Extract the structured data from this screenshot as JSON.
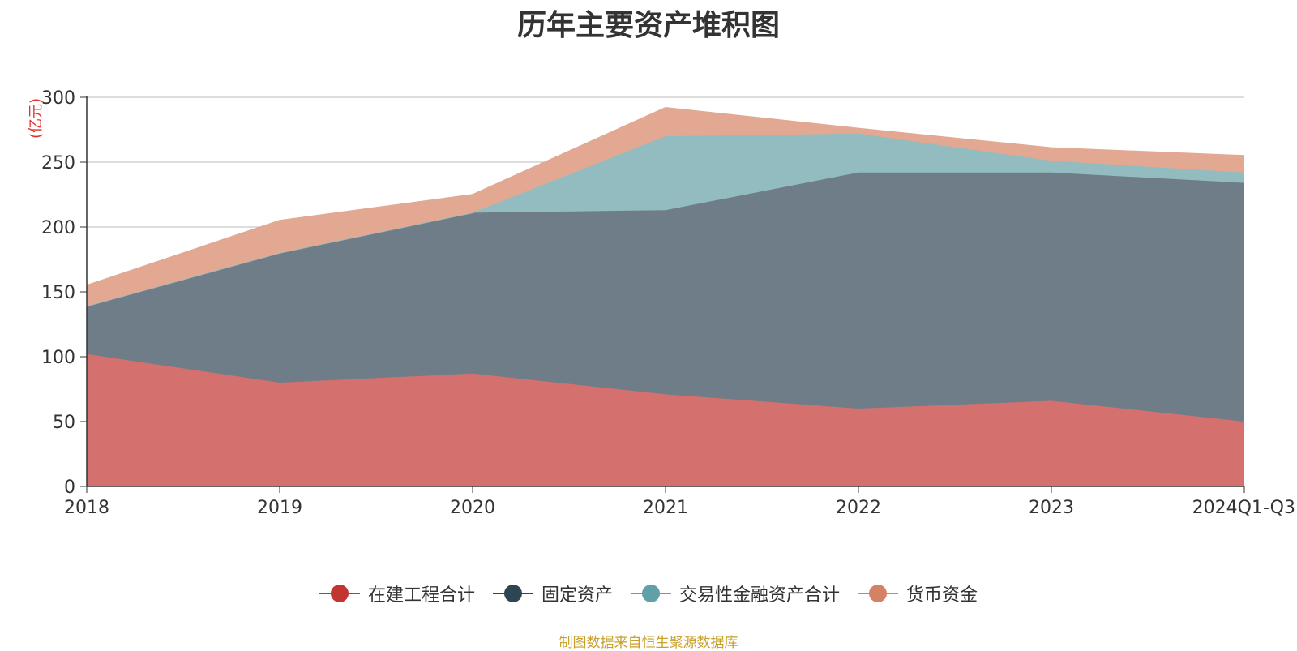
{
  "chart_data": {
    "type": "area",
    "stacked": true,
    "title": "历年主要资产堆积图",
    "ylabel": "(亿元)",
    "xlabel": "",
    "categories": [
      "2018",
      "2019",
      "2020",
      "2021",
      "2022",
      "2023",
      "2024Q1-Q3"
    ],
    "ylim": [
      0,
      300
    ],
    "yticks": [
      0,
      50,
      100,
      150,
      200,
      250,
      300
    ],
    "grid": true,
    "legend_position": "bottom-center",
    "series": [
      {
        "name": "在建工程合计",
        "color": "#c23531",
        "fill": "#d4716e",
        "values": [
          102,
          80,
          87,
          71,
          60,
          66,
          50
        ]
      },
      {
        "name": "固定资产",
        "color": "#2f4554",
        "fill": "#6f7d88",
        "values": [
          37,
          100,
          124,
          142,
          182,
          176,
          184
        ]
      },
      {
        "name": "交易性金融资产合计",
        "color": "#61a0a8",
        "fill": "#93bcc1",
        "values": [
          0,
          0,
          0,
          57,
          30,
          9,
          8
        ]
      },
      {
        "name": "货币资金",
        "color": "#d48265",
        "fill": "#e2a892",
        "values": [
          16,
          25,
          14,
          22,
          4,
          10,
          13
        ]
      }
    ]
  },
  "source_note": "制图数据来自恒生聚源数据库"
}
